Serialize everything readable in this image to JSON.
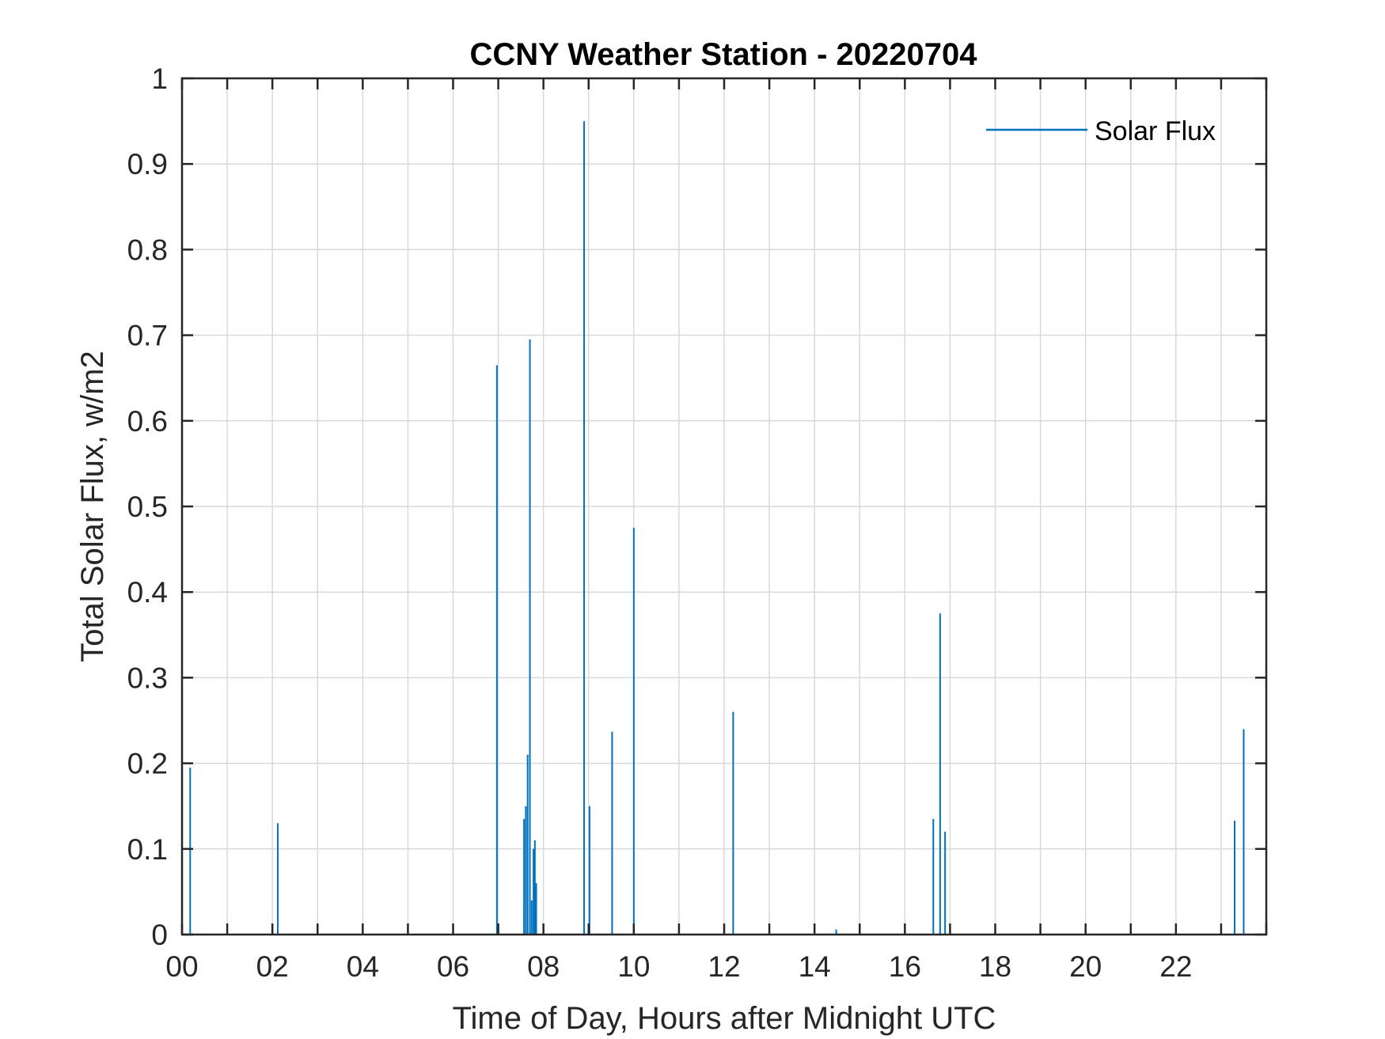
{
  "chart_data": {
    "type": "line",
    "title": "CCNY Weather Station - 20220704",
    "xlabel": "Time of Day, Hours after Midnight UTC",
    "ylabel": "Total Solar Flux, w/m2",
    "xlim": [
      0,
      24
    ],
    "ylim": [
      0,
      1
    ],
    "xticks": [
      0,
      2,
      4,
      6,
      8,
      10,
      12,
      14,
      16,
      18,
      20,
      22
    ],
    "xtick_labels": [
      "00",
      "02",
      "04",
      "06",
      "08",
      "10",
      "12",
      "14",
      "16",
      "18",
      "20",
      "22"
    ],
    "yticks": [
      0,
      0.1,
      0.2,
      0.3,
      0.4,
      0.5,
      0.6,
      0.7,
      0.8,
      0.9,
      1
    ],
    "ytick_labels": [
      "0",
      "0.1",
      "0.2",
      "0.3",
      "0.4",
      "0.5",
      "0.6",
      "0.7",
      "0.8",
      "0.9",
      "1"
    ],
    "grid": true,
    "legend": {
      "position": "top-right",
      "entries": [
        "Solar Flux"
      ]
    },
    "series": [
      {
        "name": "Solar Flux",
        "color": "#0072BD",
        "spikes": [
          {
            "x": 0.18,
            "y": 0.195
          },
          {
            "x": 2.12,
            "y": 0.13
          },
          {
            "x": 6.97,
            "y": 0.665
          },
          {
            "x": 7.57,
            "y": 0.135
          },
          {
            "x": 7.61,
            "y": 0.15
          },
          {
            "x": 7.65,
            "y": 0.21
          },
          {
            "x": 7.7,
            "y": 0.695
          },
          {
            "x": 7.74,
            "y": 0.04
          },
          {
            "x": 7.78,
            "y": 0.1
          },
          {
            "x": 7.81,
            "y": 0.11
          },
          {
            "x": 7.84,
            "y": 0.06
          },
          {
            "x": 8.9,
            "y": 0.95
          },
          {
            "x": 9.02,
            "y": 0.15
          },
          {
            "x": 9.52,
            "y": 0.237
          },
          {
            "x": 10.0,
            "y": 0.475
          },
          {
            "x": 12.2,
            "y": 0.26
          },
          {
            "x": 14.48,
            "y": 0.006
          },
          {
            "x": 16.63,
            "y": 0.135
          },
          {
            "x": 16.78,
            "y": 0.375
          },
          {
            "x": 16.89,
            "y": 0.12
          },
          {
            "x": 23.3,
            "y": 0.133
          },
          {
            "x": 23.5,
            "y": 0.24
          }
        ]
      }
    ]
  }
}
